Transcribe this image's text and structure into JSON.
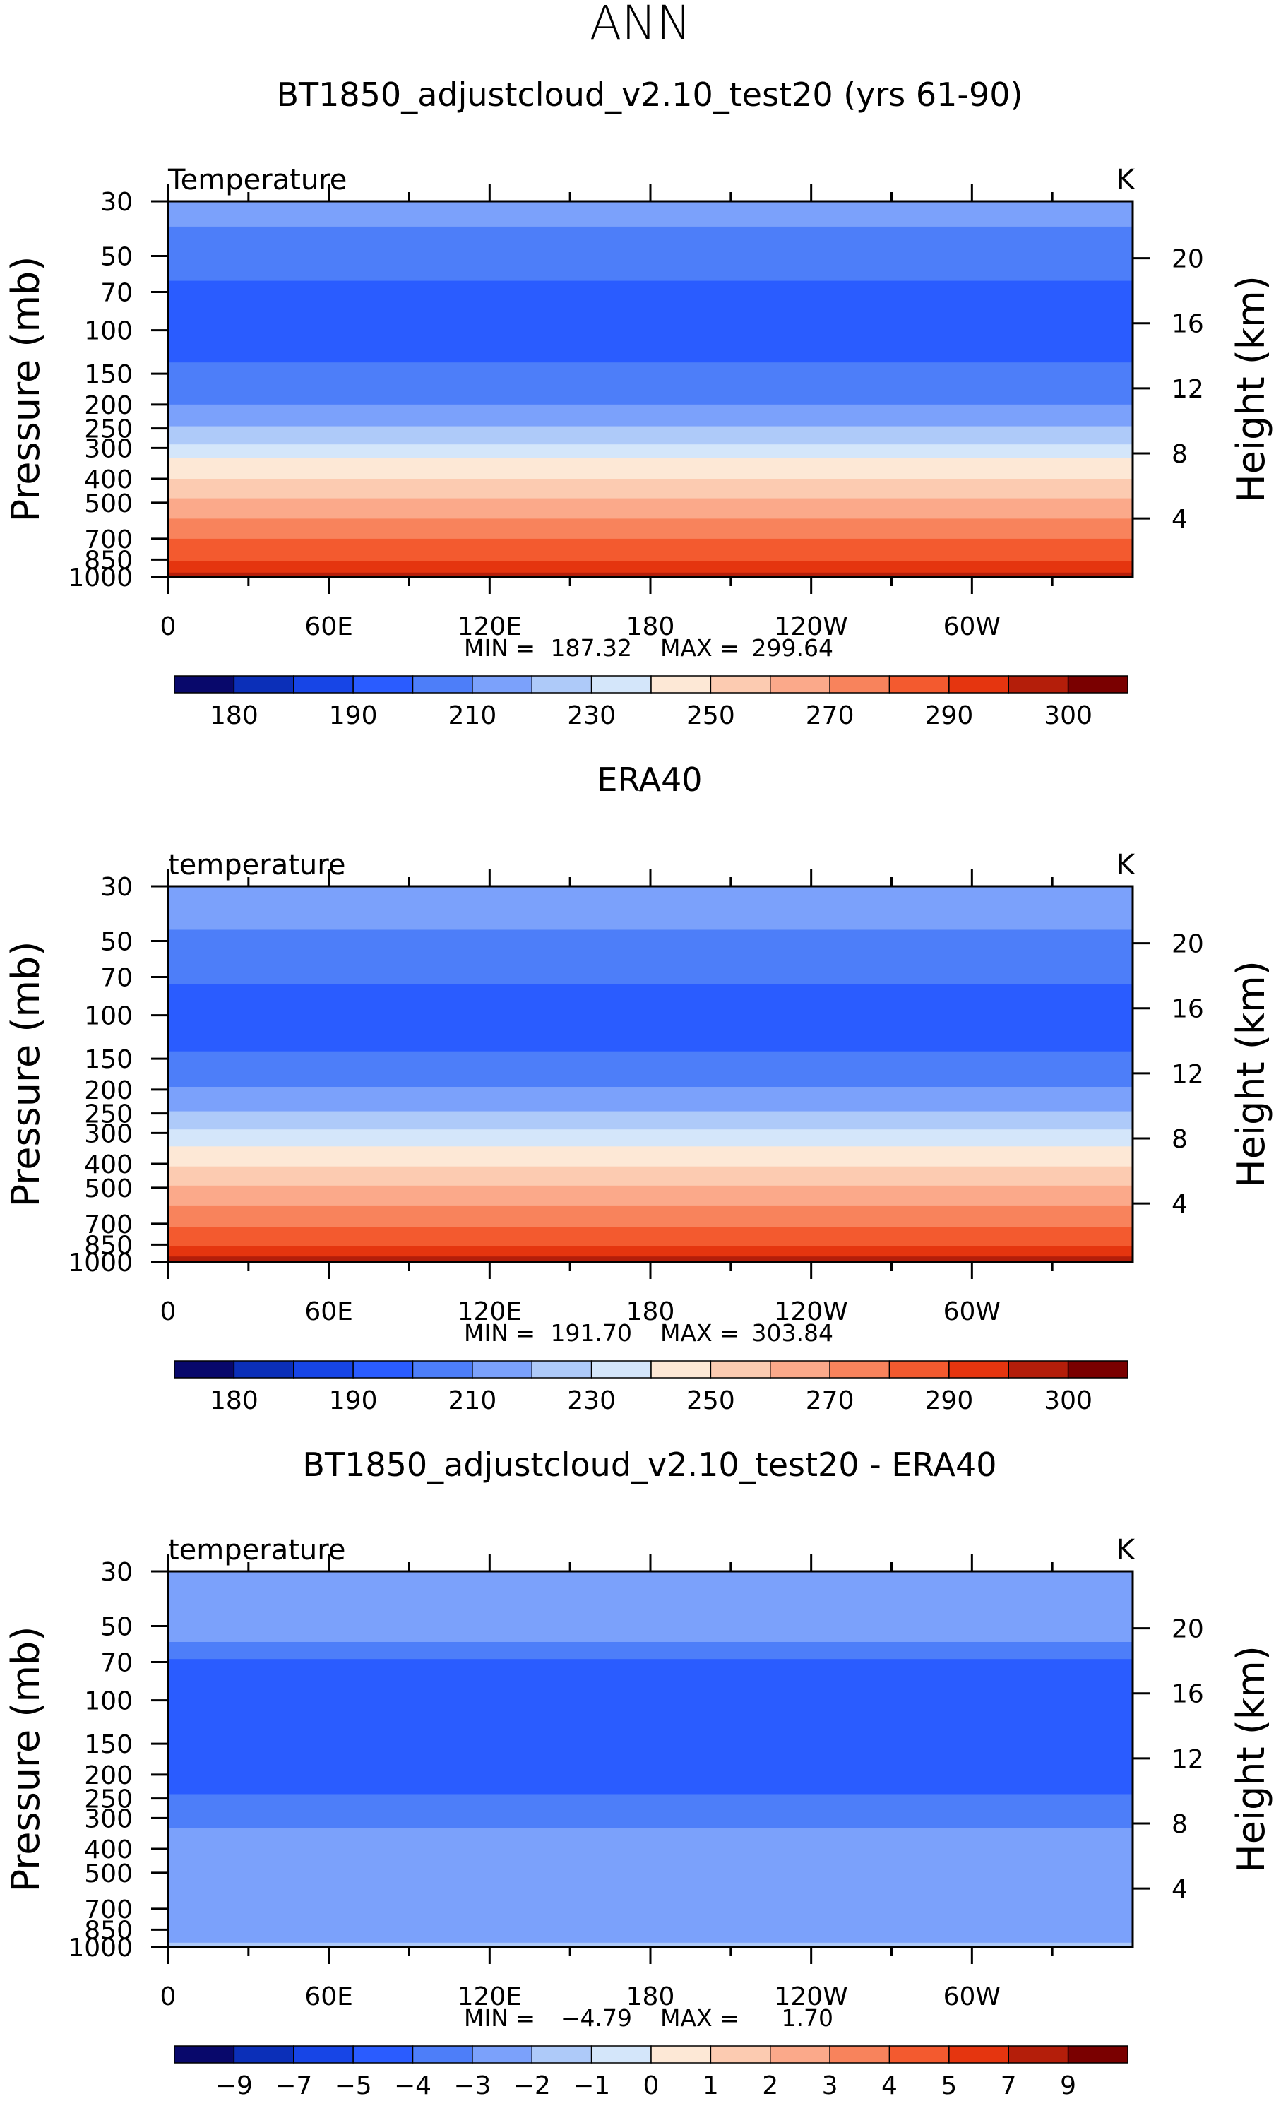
{
  "page": {
    "season": "ANN"
  },
  "chart_data": [
    {
      "type": "heatmap",
      "title": "BT1850_adjustcloud_v2.10_test20 (yrs 61-90)",
      "variable": "Temperature",
      "units": "K",
      "xlabel": "",
      "ylabel": "Pressure (mb)",
      "ylabel_right": "Height (km)",
      "x_ticks": [
        "0",
        "60E",
        "120E",
        "180",
        "120W",
        "60W"
      ],
      "x_range_deg": [
        0,
        360
      ],
      "pressure_levels": [
        30,
        50,
        70,
        100,
        150,
        200,
        250,
        300,
        400,
        500,
        700,
        850,
        1000
      ],
      "height_km_ticks": [
        20,
        16,
        12,
        8,
        4
      ],
      "stats": {
        "min_label": "MIN =",
        "min": "187.32",
        "max_label": "MAX =",
        "max": "299.64"
      },
      "colorbar_labels": [
        "180",
        "190",
        "210",
        "230",
        "250",
        "270",
        "290",
        "300"
      ],
      "bands_by_pressure": [
        {
          "p_top": 30,
          "p_bot": 38,
          "color_index": 5
        },
        {
          "p_top": 38,
          "p_bot": 63,
          "color_index": 4
        },
        {
          "p_top": 63,
          "p_bot": 135,
          "color_index": 3
        },
        {
          "p_top": 135,
          "p_bot": 200,
          "color_index": 4
        },
        {
          "p_top": 200,
          "p_bot": 245,
          "color_index": 5
        },
        {
          "p_top": 245,
          "p_bot": 290,
          "color_index": 6
        },
        {
          "p_top": 290,
          "p_bot": 330,
          "color_index": 7
        },
        {
          "p_top": 330,
          "p_bot": 400,
          "color_index": 8
        },
        {
          "p_top": 400,
          "p_bot": 480,
          "color_index": 9
        },
        {
          "p_top": 480,
          "p_bot": 580,
          "color_index": 10
        },
        {
          "p_top": 580,
          "p_bot": 700,
          "color_index": 11
        },
        {
          "p_top": 700,
          "p_bot": 860,
          "color_index": 12
        },
        {
          "p_top": 860,
          "p_bot": 960,
          "color_index": 13
        },
        {
          "p_top": 960,
          "p_bot": 1000,
          "color_index": 14
        }
      ]
    },
    {
      "type": "heatmap",
      "title": "ERA40",
      "variable": "temperature",
      "units": "K",
      "xlabel": "",
      "ylabel": "Pressure (mb)",
      "ylabel_right": "Height (km)",
      "x_ticks": [
        "0",
        "60E",
        "120E",
        "180",
        "120W",
        "60W"
      ],
      "x_range_deg": [
        0,
        360
      ],
      "pressure_levels": [
        30,
        50,
        70,
        100,
        150,
        200,
        250,
        300,
        400,
        500,
        700,
        850,
        1000
      ],
      "height_km_ticks": [
        20,
        16,
        12,
        8,
        4
      ],
      "stats": {
        "min_label": "MIN =",
        "min": "191.70",
        "max_label": "MAX =",
        "max": "303.84"
      },
      "colorbar_labels": [
        "180",
        "190",
        "210",
        "230",
        "250",
        "270",
        "290",
        "300"
      ],
      "bands_by_pressure": [
        {
          "p_top": 30,
          "p_bot": 45,
          "color_index": 5
        },
        {
          "p_top": 45,
          "p_bot": 75,
          "color_index": 4
        },
        {
          "p_top": 75,
          "p_bot": 140,
          "color_index": 3
        },
        {
          "p_top": 140,
          "p_bot": 195,
          "color_index": 4
        },
        {
          "p_top": 195,
          "p_bot": 245,
          "color_index": 5
        },
        {
          "p_top": 245,
          "p_bot": 290,
          "color_index": 6
        },
        {
          "p_top": 290,
          "p_bot": 340,
          "color_index": 7
        },
        {
          "p_top": 340,
          "p_bot": 410,
          "color_index": 8
        },
        {
          "p_top": 410,
          "p_bot": 490,
          "color_index": 9
        },
        {
          "p_top": 490,
          "p_bot": 590,
          "color_index": 10
        },
        {
          "p_top": 590,
          "p_bot": 720,
          "color_index": 11
        },
        {
          "p_top": 720,
          "p_bot": 860,
          "color_index": 12
        },
        {
          "p_top": 860,
          "p_bot": 950,
          "color_index": 13
        },
        {
          "p_top": 950,
          "p_bot": 1000,
          "color_index": 14
        }
      ]
    },
    {
      "type": "heatmap",
      "title": "BT1850_adjustcloud_v2.10_test20 - ERA40",
      "variable": "temperature",
      "units": "K",
      "xlabel": "",
      "ylabel": "Pressure (mb)",
      "ylabel_right": "Height (km)",
      "x_ticks": [
        "0",
        "60E",
        "120E",
        "180",
        "120W",
        "60W"
      ],
      "x_range_deg": [
        0,
        360
      ],
      "pressure_levels": [
        30,
        50,
        70,
        100,
        150,
        200,
        250,
        300,
        400,
        500,
        700,
        850,
        1000
      ],
      "height_km_ticks": [
        20,
        16,
        12,
        8,
        4
      ],
      "stats": {
        "min_label": "MIN =",
        "min": "−4.79",
        "max_label": "MAX =",
        "max": "1.70"
      },
      "colorbar_labels": [
        "−9",
        "−7",
        "−5",
        "−4",
        "−3",
        "−2",
        "−1",
        "0",
        "1",
        "2",
        "3",
        "4",
        "5",
        "7",
        "9"
      ],
      "bands_by_pressure": [
        {
          "p_top": 30,
          "p_bot": 58,
          "color_index": 5
        },
        {
          "p_top": 58,
          "p_bot": 68,
          "color_index": 4
        },
        {
          "p_top": 68,
          "p_bot": 240,
          "color_index": 3
        },
        {
          "p_top": 240,
          "p_bot": 330,
          "color_index": 4
        },
        {
          "p_top": 330,
          "p_bot": 960,
          "color_index": 5
        },
        {
          "p_top": 960,
          "p_bot": 1000,
          "color_index": 6
        }
      ]
    }
  ],
  "colorbar_colors": [
    "#08086b",
    "#0b2fb8",
    "#1745e6",
    "#2a5cff",
    "#4d7ef9",
    "#7ba1fb",
    "#aecaf9",
    "#d4e6fa",
    "#fde8d6",
    "#fccbb1",
    "#fba98a",
    "#f8835c",
    "#f35a2f",
    "#e5350f",
    "#b41e0a",
    "#7a0000"
  ]
}
